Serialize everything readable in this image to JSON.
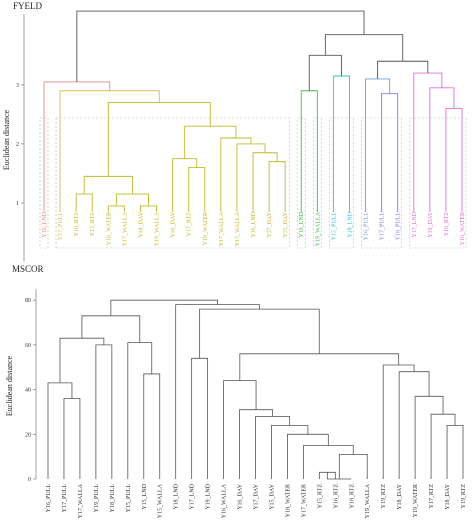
{
  "chart_data": [
    {
      "type": "dendrogram",
      "title": "FYELD",
      "ylabel": "Euclidean distance",
      "yticks": [
        "1",
        "2",
        "3"
      ],
      "ylim": [
        0,
        4.2
      ],
      "leaves": [
        "Y16_LND",
        "Y17_PULL",
        "Y16_RTZ",
        "Y15_RTZ",
        "Y16_WATER",
        "Y17_WALLA",
        "Y18_DAY",
        "Y19_WALLA",
        "Y16_DAY",
        "Y17_RTZ",
        "Y18_WATER",
        "Y17_WALLA",
        "Y15_WALLA",
        "Y16_LND",
        "Y17_DAY",
        "Y15_DAY",
        "Y16_LND",
        "Y19_WALLA",
        "Y15_PULL",
        "Y18_LND",
        "Y16_PULL",
        "Y17_PULL",
        "Y18_PULL",
        "Y17_LND",
        "Y19_DAY",
        "Y16_RTZ",
        "Y16_WATER"
      ],
      "leaf_colors": [
        "#e88a8a",
        "#d4c05a",
        "#c2b82a",
        "#c2b82a",
        "#c2b82a",
        "#c2b82a",
        "#c2b82a",
        "#c2b82a",
        "#c2b82a",
        "#c2b82a",
        "#c2b82a",
        "#c2b82a",
        "#c2b82a",
        "#c2b82a",
        "#c2b82a",
        "#c2b82a",
        "#45b845",
        "#45b845",
        "#2ec4c4",
        "#2ec4c4",
        "#6a9ee8",
        "#8a7ae0",
        "#8a7ae0",
        "#e070d0",
        "#e070d0",
        "#e070d0",
        "#e070d0"
      ],
      "merges": [
        {
          "a": 2,
          "b": 3,
          "h": 1.15,
          "c": "#c2b82a"
        },
        {
          "a": 4,
          "b": 5,
          "h": 0.95,
          "c": "#c2b82a"
        },
        {
          "a": 6,
          "b": 7,
          "h": 0.95,
          "c": "#c2b82a"
        },
        {
          "a": -2,
          "b": -3,
          "h": 1.15,
          "c": "#c2b82a"
        },
        {
          "a": -1,
          "b": -4,
          "h": 1.45,
          "c": "#c2b82a"
        },
        {
          "a": 9,
          "b": 10,
          "h": 1.6,
          "c": "#c2b82a"
        },
        {
          "a": 8,
          "b": -6,
          "h": 1.75,
          "c": "#c2b82a"
        },
        {
          "a": 14,
          "b": 15,
          "h": 1.7,
          "c": "#c2b82a"
        },
        {
          "a": 13,
          "b": -8,
          "h": 1.85,
          "c": "#c2b82a"
        },
        {
          "a": 12,
          "b": -9,
          "h": 2.0,
          "c": "#c2b82a"
        },
        {
          "a": 11,
          "b": -10,
          "h": 2.1,
          "c": "#c2b82a"
        },
        {
          "a": -7,
          "b": -11,
          "h": 2.3,
          "c": "#c2b82a"
        },
        {
          "a": -5,
          "b": -12,
          "h": 2.7,
          "c": "#c2b82a"
        },
        {
          "a": 1,
          "b": -13,
          "h": 2.9,
          "c": "#d4c05a"
        },
        {
          "a": 0,
          "b": -14,
          "h": 3.05,
          "c": "#e88a8a"
        },
        {
          "a": 16,
          "b": 17,
          "h": 2.9,
          "c": "#45b845"
        },
        {
          "a": 18,
          "b": 19,
          "h": 3.15,
          "c": "#2ec4c4"
        },
        {
          "a": 21,
          "b": 22,
          "h": 2.85,
          "c": "#8a7ae0"
        },
        {
          "a": 20,
          "b": -18,
          "h": 3.1,
          "c": "#6a9ee8"
        },
        {
          "a": 25,
          "b": 26,
          "h": 2.6,
          "c": "#e070d0"
        },
        {
          "a": 24,
          "b": -20,
          "h": 2.95,
          "c": "#e070d0"
        },
        {
          "a": 23,
          "b": -21,
          "h": 3.2,
          "c": "#e070d0"
        },
        {
          "a": -16,
          "b": -17,
          "h": 3.5,
          "c": "#555555"
        },
        {
          "a": -19,
          "b": -22,
          "h": 3.4,
          "c": "#555555"
        },
        {
          "a": -23,
          "b": -24,
          "h": 3.85,
          "c": "#555555"
        },
        {
          "a": -15,
          "b": -25,
          "h": 4.25,
          "c": "#555555"
        }
      ]
    },
    {
      "type": "dendrogram",
      "title": "MSCOR",
      "ylabel": "Euclidean distance",
      "yticks": [
        "0",
        "20",
        "40",
        "60",
        "80"
      ],
      "ylim": [
        0,
        85
      ],
      "leaves": [
        "Y16_PULL",
        "Y17_PULL",
        "Y17_WALLA",
        "Y19_PULL",
        "Y18_PULL",
        "Y15_PULL",
        "Y15_LND",
        "Y15_WALLA",
        "Y18_LND",
        "Y17_LND",
        "Y19_LND",
        "Y16_WALLA",
        "Y16_DAY",
        "Y17_DAY",
        "Y15_DAY",
        "Y18_WATER",
        "Y17_WATER",
        "Y15_RTZ",
        "Y16_RTZ",
        "Y18_RTZ",
        "Y19_WALLA",
        "Y19_RTZ",
        "Y18_DAY",
        "Y19_WATER",
        "Y17_RTZ",
        "Y18_DAY",
        "Y19_RTZ"
      ],
      "merges": [
        {
          "a": 1,
          "b": 2,
          "h": 36
        },
        {
          "a": 0,
          "b": -1,
          "h": 43
        },
        {
          "a": 3,
          "b": 4,
          "h": 60
        },
        {
          "a": -2,
          "b": -3,
          "h": 63
        },
        {
          "a": 6,
          "b": 7,
          "h": 47
        },
        {
          "a": 5,
          "b": -5,
          "h": 61
        },
        {
          "a": -4,
          "b": -6,
          "h": 73
        },
        {
          "a": 9,
          "b": 10,
          "h": 54
        },
        {
          "a": 17,
          "b": 18,
          "h": 3
        },
        {
          "a": -9,
          "b": 19,
          "h": 0
        },
        {
          "a": -10,
          "b": 20,
          "h": 11
        },
        {
          "a": 16,
          "b": -11,
          "h": 15
        },
        {
          "a": 15,
          "b": -12,
          "h": 20
        },
        {
          "a": 14,
          "b": -13,
          "h": 24
        },
        {
          "a": 13,
          "b": -14,
          "h": 28
        },
        {
          "a": 12,
          "b": -15,
          "h": 31
        },
        {
          "a": 11,
          "b": -16,
          "h": 44
        },
        {
          "a": 25,
          "b": 26,
          "h": 24
        },
        {
          "a": 24,
          "b": -18,
          "h": 29
        },
        {
          "a": 23,
          "b": -19,
          "h": 37
        },
        {
          "a": 22,
          "b": -20,
          "h": 48
        },
        {
          "a": 21,
          "b": -21,
          "h": 51
        },
        {
          "a": -17,
          "b": -22,
          "h": 56
        },
        {
          "a": -8,
          "b": -23,
          "h": 76
        },
        {
          "a": 8,
          "b": -24,
          "h": 78
        },
        {
          "a": -7,
          "b": -25,
          "h": 80
        }
      ]
    }
  ]
}
